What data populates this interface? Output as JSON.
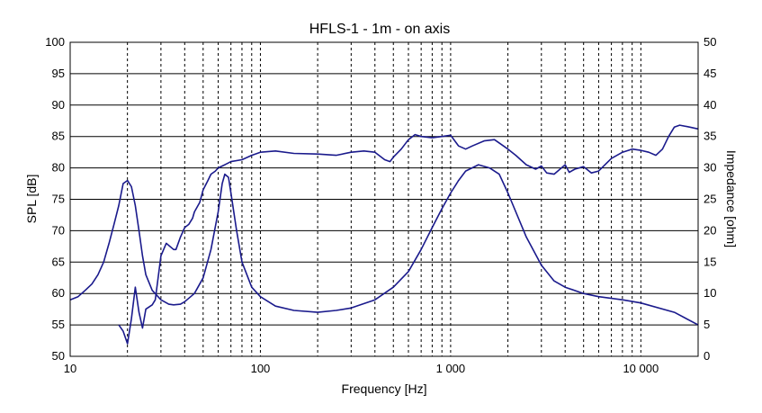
{
  "chart_data": {
    "type": "line",
    "title": "HFLS-1   -  1m  - on axis",
    "xlabel": "Frequency [Hz]",
    "ylabel": "SPL [dB]",
    "y2label": "Impedance [ohm]",
    "x_scale": "log",
    "xlim": [
      10,
      20000
    ],
    "ylim": [
      50,
      100
    ],
    "y2lim": [
      0,
      50
    ],
    "grid": "dashed vertical at log decades, solid horizontal",
    "x_ticks": [
      "10",
      "100",
      "1 000",
      "10 000"
    ],
    "y_ticks": [
      "100",
      "95",
      "90",
      "85",
      "80",
      "75",
      "70",
      "65",
      "60",
      "55",
      "50"
    ],
    "y2_ticks": [
      "50",
      "45",
      "40",
      "35",
      "30",
      "25",
      "20",
      "15",
      "10",
      "5",
      "0"
    ],
    "line_color": "#1a1a8c",
    "series": [
      {
        "axis": "left",
        "x": [
          18,
          19,
          20,
          21,
          22,
          23,
          24,
          25,
          27,
          28,
          30,
          32,
          35,
          36,
          38,
          40,
          42,
          44,
          45,
          48,
          50,
          53,
          55,
          58,
          60,
          65,
          70,
          80,
          90,
          100,
          120,
          150,
          200,
          250,
          300,
          350,
          400,
          450,
          480,
          500,
          550,
          600,
          650,
          700,
          800,
          900,
          1000,
          1100,
          1200,
          1300,
          1500,
          1700,
          2000,
          2200,
          2500,
          2800,
          3000,
          3200,
          3500,
          4000,
          4200,
          4500,
          5000,
          5500,
          6000,
          7000,
          8000,
          9000,
          10000,
          11000,
          12000,
          13000,
          14000,
          15000,
          16000,
          18000,
          20000
        ],
        "y": [
          55,
          54,
          52,
          56,
          61,
          57,
          54.5,
          57.5,
          58.2,
          59,
          66,
          68,
          67,
          67,
          69,
          70.5,
          71,
          72,
          73,
          74.5,
          76.5,
          78,
          79,
          79.5,
          80,
          80.5,
          81,
          81.3,
          82,
          82.5,
          82.7,
          82.3,
          82.2,
          82,
          82.5,
          82.7,
          82.5,
          81.3,
          81,
          81.7,
          83,
          84.5,
          85.3,
          85,
          84.8,
          85,
          85.2,
          83.5,
          83,
          83.5,
          84.3,
          84.5,
          83,
          82,
          80.5,
          79.8,
          80.3,
          79.2,
          79,
          80.5,
          79.3,
          79.8,
          80.2,
          79.2,
          79.5,
          81.5,
          82.5,
          83,
          82.8,
          82.5,
          82,
          83,
          85,
          86.5,
          86.8,
          86.5,
          86.2
        ]
      },
      {
        "axis": "right",
        "x": [
          10,
          11,
          12,
          13,
          14,
          15,
          16,
          17,
          18,
          19,
          20,
          21,
          22,
          23,
          24,
          25,
          27,
          30,
          33,
          35,
          38,
          40,
          45,
          50,
          55,
          60,
          63,
          65,
          68,
          70,
          75,
          80,
          90,
          100,
          120,
          150,
          200,
          250,
          300,
          400,
          500,
          600,
          700,
          800,
          900,
          1000,
          1100,
          1200,
          1400,
          1600,
          1800,
          2000,
          2500,
          3000,
          3500,
          4000,
          5000,
          6000,
          8000,
          10000,
          15000,
          20000
        ],
        "y": [
          9,
          9.5,
          10.5,
          11.5,
          13,
          15,
          18,
          21,
          24,
          27.5,
          28,
          27,
          24,
          20,
          16,
          13,
          10.5,
          9,
          8.3,
          8.2,
          8.3,
          8.7,
          10,
          12.5,
          17,
          23,
          27.5,
          29,
          28.5,
          26,
          20,
          15,
          11,
          9.5,
          8,
          7.3,
          7,
          7.3,
          7.7,
          9,
          11,
          13.5,
          17,
          20.5,
          23.5,
          26,
          28,
          29.5,
          30.5,
          30,
          29,
          26,
          19,
          14.5,
          12,
          11,
          10,
          9.5,
          9,
          8.5,
          7,
          5
        ]
      }
    ]
  }
}
